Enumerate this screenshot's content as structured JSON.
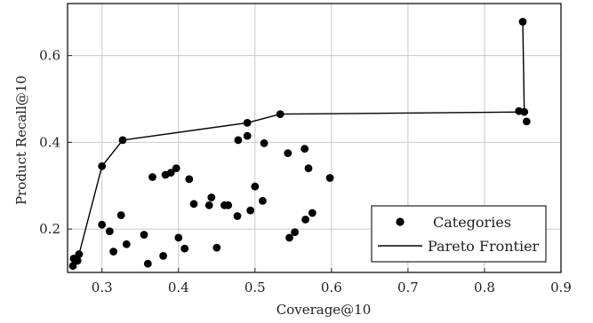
{
  "chart_data": {
    "type": "scatter",
    "xlabel": "Coverage@10",
    "ylabel": "Product Recall@10",
    "xlim": [
      0.255,
      0.9
    ],
    "ylim": [
      0.1,
      0.72
    ],
    "grid": true,
    "legend_position": "bottom-right",
    "x_ticks": [
      {
        "value": 0.3,
        "label": "0.3"
      },
      {
        "value": 0.4,
        "label": "0.4"
      },
      {
        "value": 0.5,
        "label": "0.5"
      },
      {
        "value": 0.6,
        "label": "0.6"
      },
      {
        "value": 0.7,
        "label": "0.7"
      },
      {
        "value": 0.8,
        "label": "0.8"
      },
      {
        "value": 0.9,
        "label": "0.9"
      }
    ],
    "y_ticks": [
      {
        "value": 0.2,
        "label": "0.2"
      },
      {
        "value": 0.4,
        "label": "0.4"
      },
      {
        "value": 0.6,
        "label": "0.6"
      }
    ],
    "series": [
      {
        "name": "Categories",
        "kind": "scatter",
        "color": "#000000",
        "points": [
          [
            0.262,
            0.115
          ],
          [
            0.263,
            0.132
          ],
          [
            0.268,
            0.127
          ],
          [
            0.27,
            0.142
          ],
          [
            0.3,
            0.21
          ],
          [
            0.3,
            0.345
          ],
          [
            0.31,
            0.195
          ],
          [
            0.315,
            0.148
          ],
          [
            0.325,
            0.232
          ],
          [
            0.327,
            0.405
          ],
          [
            0.332,
            0.165
          ],
          [
            0.355,
            0.187
          ],
          [
            0.36,
            0.12
          ],
          [
            0.366,
            0.32
          ],
          [
            0.38,
            0.138
          ],
          [
            0.383,
            0.325
          ],
          [
            0.39,
            0.33
          ],
          [
            0.397,
            0.34
          ],
          [
            0.4,
            0.18
          ],
          [
            0.408,
            0.155
          ],
          [
            0.414,
            0.315
          ],
          [
            0.42,
            0.258
          ],
          [
            0.44,
            0.255
          ],
          [
            0.443,
            0.273
          ],
          [
            0.45,
            0.157
          ],
          [
            0.46,
            0.255
          ],
          [
            0.465,
            0.255
          ],
          [
            0.477,
            0.23
          ],
          [
            0.478,
            0.405
          ],
          [
            0.49,
            0.415
          ],
          [
            0.49,
            0.445
          ],
          [
            0.494,
            0.243
          ],
          [
            0.5,
            0.298
          ],
          [
            0.51,
            0.265
          ],
          [
            0.512,
            0.398
          ],
          [
            0.533,
            0.465
          ],
          [
            0.543,
            0.375
          ],
          [
            0.545,
            0.18
          ],
          [
            0.552,
            0.193
          ],
          [
            0.565,
            0.385
          ],
          [
            0.566,
            0.222
          ],
          [
            0.57,
            0.34
          ],
          [
            0.575,
            0.237
          ],
          [
            0.598,
            0.318
          ],
          [
            0.845,
            0.472
          ],
          [
            0.85,
            0.678
          ],
          [
            0.852,
            0.47
          ],
          [
            0.855,
            0.448
          ]
        ]
      },
      {
        "name": "Pareto Frontier",
        "kind": "line",
        "color": "#000000",
        "points": [
          [
            0.262,
            0.115
          ],
          [
            0.27,
            0.142
          ],
          [
            0.3,
            0.345
          ],
          [
            0.327,
            0.405
          ],
          [
            0.49,
            0.445
          ],
          [
            0.533,
            0.465
          ],
          [
            0.852,
            0.47
          ],
          [
            0.85,
            0.678
          ]
        ]
      }
    ]
  }
}
